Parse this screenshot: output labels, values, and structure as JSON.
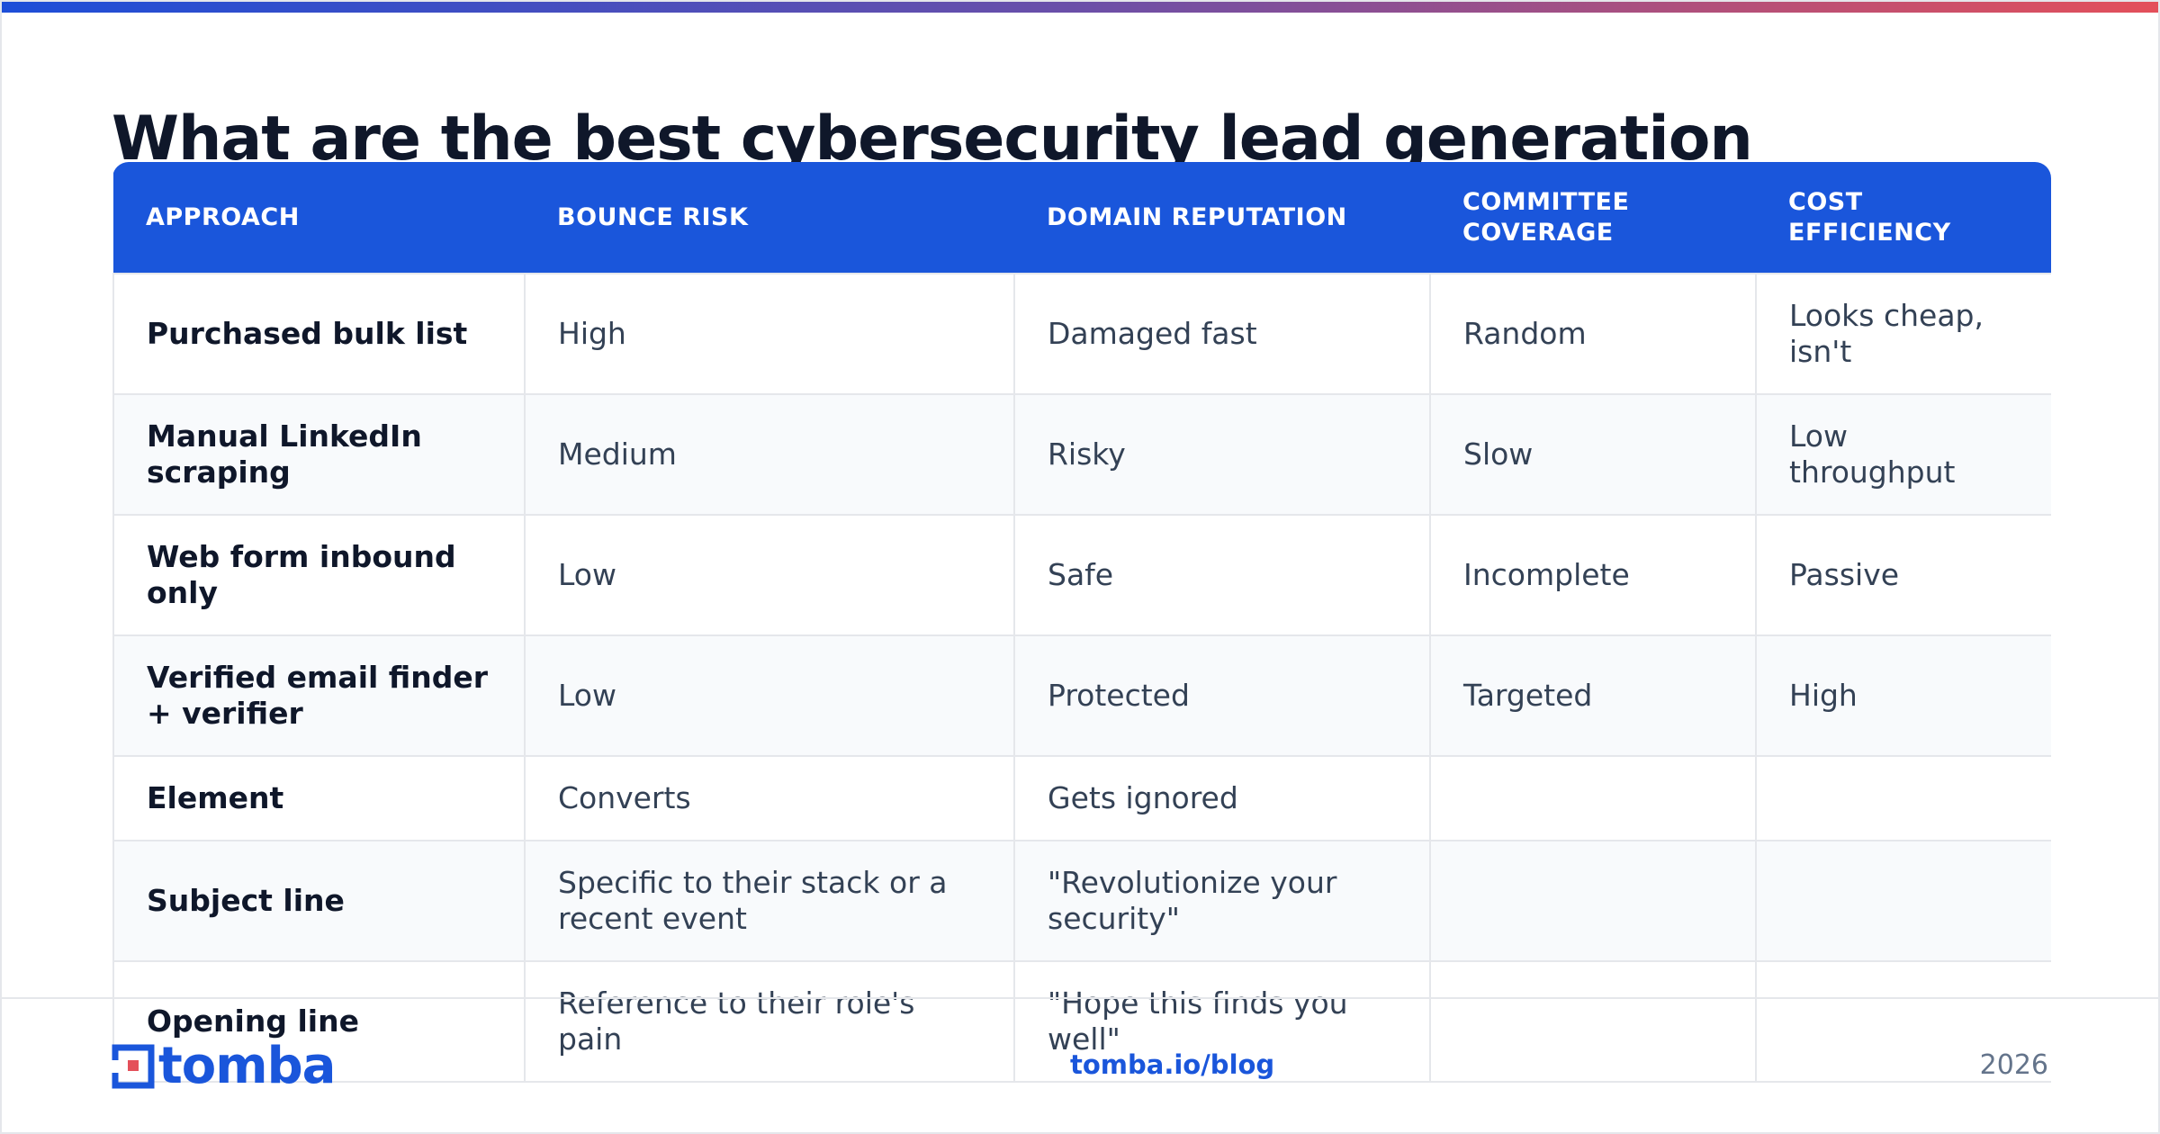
{
  "title": "What are the best cybersecurity lead generation",
  "table": {
    "headers": [
      "APPROACH",
      "BOUNCE RISK",
      "DOMAIN REPUTATION",
      "COMMITTEE COVERAGE",
      "COST EFFICIENCY"
    ],
    "rows": [
      [
        "Purchased bulk list",
        "High",
        "Damaged fast",
        "Random",
        "Looks cheap, isn't"
      ],
      [
        "Manual LinkedIn scraping",
        "Medium",
        "Risky",
        "Slow",
        "Low throughput"
      ],
      [
        "Web form inbound only",
        "Low",
        "Safe",
        "Incomplete",
        "Passive"
      ],
      [
        "Verified email finder + verifier",
        "Low",
        "Protected",
        "Targeted",
        "High"
      ],
      [
        "Element",
        "Converts",
        "Gets ignored",
        "",
        ""
      ],
      [
        "Subject line",
        "Specific to their stack or a recent event",
        "\"Revolutionize your security\"",
        "",
        ""
      ],
      [
        "Opening line",
        "Reference to their role's pain",
        "\"Hope this finds you well\"",
        "",
        ""
      ]
    ]
  },
  "footer": {
    "logo_text": "tomba",
    "link": "tomba.io/blog",
    "year": "2026"
  },
  "colors": {
    "accent": "#1a56db",
    "gradient_start": "#1d4ed8",
    "gradient_end": "#e4505a"
  },
  "icons": {
    "logo": "tomba-logo-icon"
  }
}
